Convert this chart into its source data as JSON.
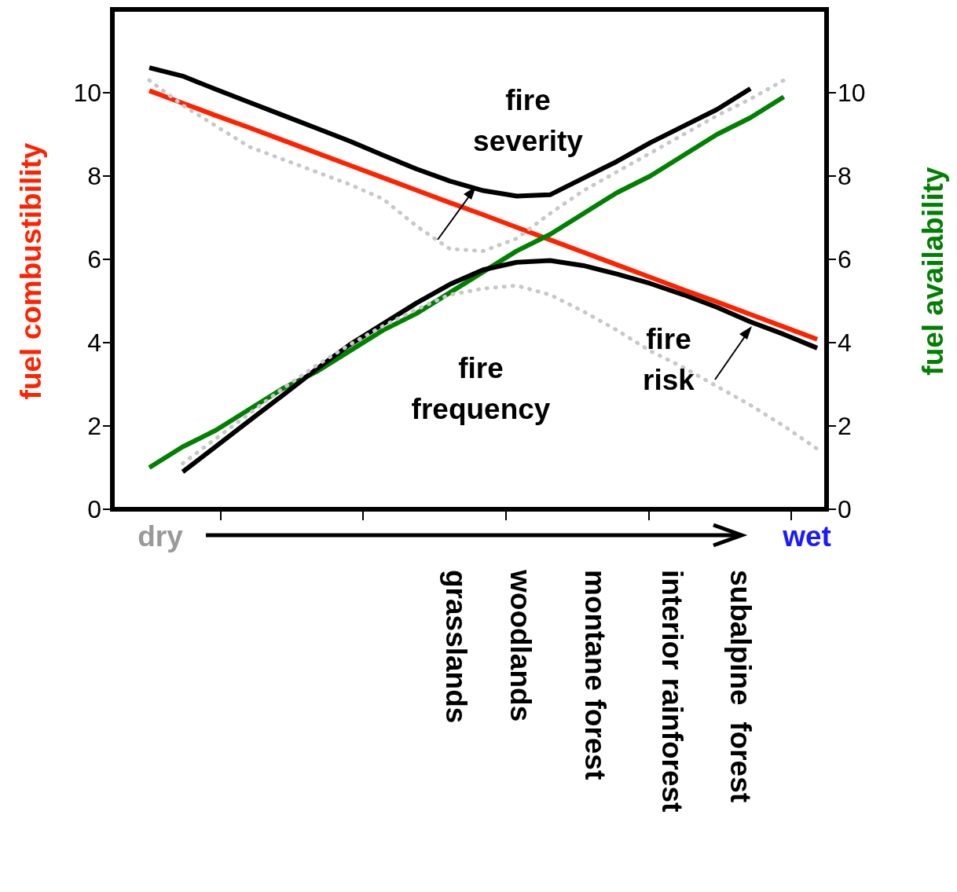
{
  "chart_data": {
    "type": "line",
    "ylabel": "fuel combustibility",
    "y2label": "fuel availability",
    "categories": [
      null,
      null,
      null,
      null,
      null,
      null,
      null,
      null,
      null,
      null,
      null,
      null,
      null,
      null,
      null,
      null,
      null,
      null,
      null,
      null,
      null
    ],
    "ylim": [
      0,
      12
    ],
    "yticks": [
      0,
      2,
      4,
      6,
      8,
      10
    ],
    "y2lim": [
      0,
      12
    ],
    "y2ticks": [
      0,
      2,
      4,
      6,
      8,
      10
    ],
    "marker": "none",
    "series": [
      {
        "color": "#ff2200",
        "line_style": "solid",
        "values": [
          10.05,
          9.75,
          9.45,
          9.16,
          8.86,
          8.56,
          8.26,
          7.96,
          7.66,
          7.36,
          7.07,
          6.77,
          6.47,
          6.17,
          5.87,
          5.57,
          5.27,
          4.98,
          4.68,
          4.38,
          4.08
        ]
      },
      {
        "color": "#008000",
        "line_style": "solid",
        "axis": "y2",
        "values": [
          1.0,
          1.5,
          1.9,
          2.4,
          2.9,
          3.3,
          3.8,
          4.3,
          4.7,
          5.2,
          5.7,
          6.2,
          6.6,
          7.1,
          7.6,
          8.0,
          8.5,
          9.0,
          9.4,
          9.9,
          null
        ]
      },
      {
        "color": "#000000",
        "line_style": "solid",
        "values": [
          10.6,
          10.4,
          10.08,
          9.77,
          9.46,
          9.15,
          8.84,
          8.5,
          8.17,
          7.88,
          7.65,
          7.52,
          7.55,
          7.95,
          8.35,
          8.8,
          9.2,
          9.6,
          10.1,
          null,
          null
        ]
      },
      {
        "color": "#000000",
        "line_style": "solid",
        "values": [
          null,
          0.9,
          1.51,
          2.13,
          2.74,
          3.36,
          3.95,
          4.45,
          4.95,
          5.4,
          5.75,
          5.93,
          5.97,
          5.85,
          5.65,
          5.42,
          5.15,
          4.85,
          4.5,
          4.2,
          3.87
        ]
      },
      {
        "color": "#c8c8c8",
        "line_style": "dotted",
        "values": [
          10.3,
          9.7,
          9.2,
          8.7,
          8.4,
          8.1,
          7.8,
          7.45,
          6.8,
          6.25,
          6.2,
          6.5,
          7.1,
          7.65,
          8.1,
          8.55,
          9.0,
          9.45,
          9.85,
          10.3,
          null
        ]
      },
      {
        "color": "#c8c8c8",
        "line_style": "dotted",
        "values": [
          null,
          1.1,
          1.7,
          2.3,
          2.9,
          3.45,
          3.95,
          4.4,
          4.8,
          5.15,
          5.3,
          5.37,
          5.15,
          4.75,
          4.3,
          3.8,
          3.4,
          2.95,
          2.5,
          2.0,
          1.45
        ]
      }
    ],
    "annotations": [
      "fire severity",
      "fire frequency",
      "fire risk",
      "dry",
      "wet",
      "grasslands",
      "woodlands",
      "montane forest",
      "interior rainforest",
      "subalpine  forest"
    ]
  }
}
